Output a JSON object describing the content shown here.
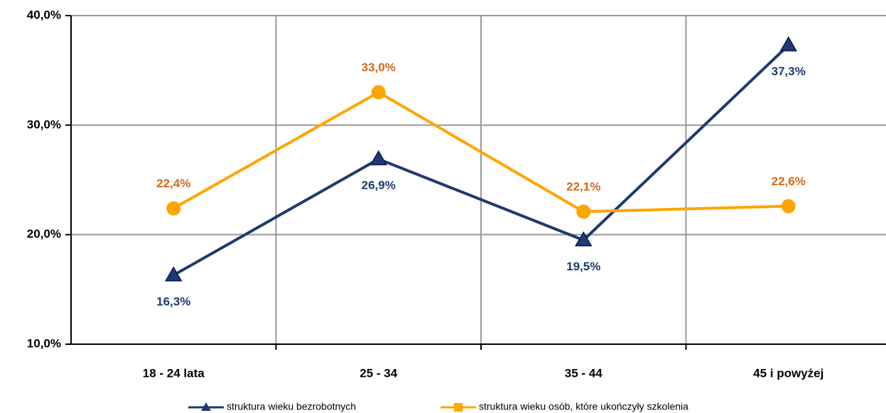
{
  "chart_data": {
    "type": "line",
    "categories": [
      "18 - 24 lata",
      "25 - 34",
      "35 - 44",
      "45 i powyżej"
    ],
    "series": [
      {
        "name": "struktura wieku bezrobotnych",
        "color": "#1f3a6e",
        "label_color": "#1f3a6e",
        "marker": "triangle",
        "label_position": "below",
        "values": [
          16.3,
          26.9,
          19.5,
          37.3
        ],
        "value_labels": [
          "16,3%",
          "26,9%",
          "19,5%",
          "37,3%"
        ]
      },
      {
        "name": "struktura wieku osób, które ukończyły szkolenia",
        "color": "#ffa500",
        "label_color": "#d2691e",
        "marker": "circle",
        "label_position": "above",
        "values": [
          22.4,
          33.0,
          22.1,
          22.6
        ],
        "value_labels": [
          "22,4%",
          "33,0%",
          "22,1%",
          "22,6%"
        ]
      }
    ],
    "ylim": [
      10,
      40
    ],
    "yticks": [
      {
        "value": 10,
        "label": "10,0%"
      },
      {
        "value": 20,
        "label": "20,0%"
      },
      {
        "value": 30,
        "label": "30,0%"
      },
      {
        "value": 40,
        "label": "40,0%"
      }
    ],
    "grid": true,
    "legend": "bottom"
  }
}
